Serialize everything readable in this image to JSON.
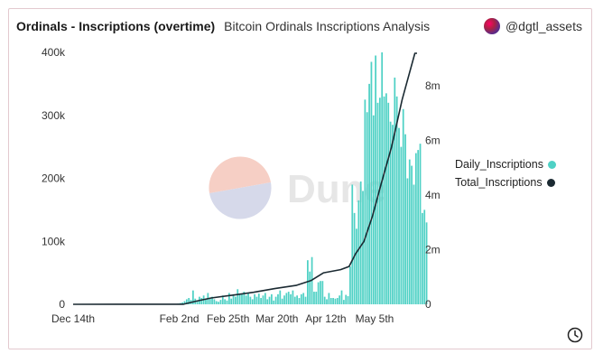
{
  "header": {
    "title": "Ordinals - Inscriptions (overtime)",
    "subtitle": "Bitcoin Ordinals Inscriptions Analysis",
    "author": "@dgtl_assets"
  },
  "watermark": {
    "text": "Dune"
  },
  "colors": {
    "daily": "#4fd1c5",
    "total": "#1b2a32",
    "watermark_top": "#f6cfc5",
    "watermark_bottom": "#d6d9ea"
  },
  "chart_data": {
    "type": "bar",
    "x_tick_labels": [
      "Dec 14th",
      "Feb 2nd",
      "Feb 25th",
      "Mar 20th",
      "Apr 12th",
      "May 5th"
    ],
    "x_tick_positions": [
      0,
      50,
      73,
      96,
      119,
      142
    ],
    "n_days": 162,
    "y_left": {
      "ticks": [
        0,
        100000,
        200000,
        300000,
        400000
      ],
      "labels": [
        "0",
        "100k",
        "200k",
        "300k",
        "400k"
      ],
      "max": 400000
    },
    "y_right": {
      "ticks": [
        0,
        2000000,
        4000000,
        6000000,
        8000000
      ],
      "labels": [
        "0",
        "2m",
        "4m",
        "6m",
        "8m"
      ],
      "max": 8000000
    },
    "series": [
      {
        "name": "Daily_Inscriptions",
        "axis": "left",
        "values": [
          0,
          0,
          0,
          0,
          0,
          0,
          0,
          0,
          0,
          0,
          0,
          0,
          0,
          0,
          0,
          0,
          0,
          0,
          0,
          0,
          0,
          0,
          0,
          0,
          0,
          0,
          0,
          0,
          0,
          0,
          0,
          0,
          0,
          0,
          0,
          0,
          0,
          0,
          0,
          0,
          0,
          0,
          0,
          0,
          0,
          0,
          0,
          0,
          500,
          1200,
          2000,
          3000,
          5000,
          8000,
          10000,
          7000,
          22000,
          9000,
          6000,
          12000,
          10000,
          14000,
          8000,
          18000,
          10000,
          12000,
          8000,
          5000,
          4000,
          7000,
          14000,
          8000,
          6000,
          18000,
          9000,
          16000,
          12000,
          24000,
          17000,
          16000,
          20000,
          14000,
          18000,
          12000,
          8000,
          16000,
          12000,
          17000,
          10000,
          14000,
          18000,
          8000,
          12000,
          16000,
          6000,
          12000,
          16000,
          22000,
          9000,
          14000,
          18000,
          20000,
          16000,
          22000,
          12000,
          14000,
          10000,
          16000,
          18000,
          12000,
          70000,
          52000,
          75000,
          20000,
          20000,
          35000,
          37000,
          37000,
          12000,
          8000,
          18000,
          10000,
          10000,
          9000,
          10000,
          14000,
          22000,
          7000,
          15000,
          13000,
          60000,
          190000,
          145000,
          120000,
          165000,
          195000,
          180000,
          325000,
          305000,
          350000,
          385000,
          300000,
          395000,
          320000,
          328000,
          400000,
          330000,
          335000,
          320000,
          290000,
          285000,
          360000,
          330000,
          280000,
          250000,
          310000,
          270000,
          200000,
          230000,
          220000,
          190000,
          240000,
          245000,
          255000,
          145000,
          150000,
          130000
        ]
      },
      {
        "name": "Total_Inscriptions",
        "axis": "right",
        "points": [
          [
            0,
            0
          ],
          [
            52,
            2000
          ],
          [
            58,
            100000
          ],
          [
            65,
            200000
          ],
          [
            75,
            290000
          ],
          [
            85,
            380000
          ],
          [
            95,
            500000
          ],
          [
            105,
            600000
          ],
          [
            112,
            750000
          ],
          [
            118,
            1000000
          ],
          [
            126,
            1100000
          ],
          [
            130,
            1200000
          ],
          [
            133,
            1600000
          ],
          [
            137,
            2000000
          ],
          [
            141,
            2800000
          ],
          [
            145,
            3800000
          ],
          [
            150,
            5000000
          ],
          [
            155,
            6500000
          ],
          [
            161,
            8500000
          ],
          [
            165,
            9000000
          ]
        ]
      }
    ],
    "legend_position": "right"
  }
}
